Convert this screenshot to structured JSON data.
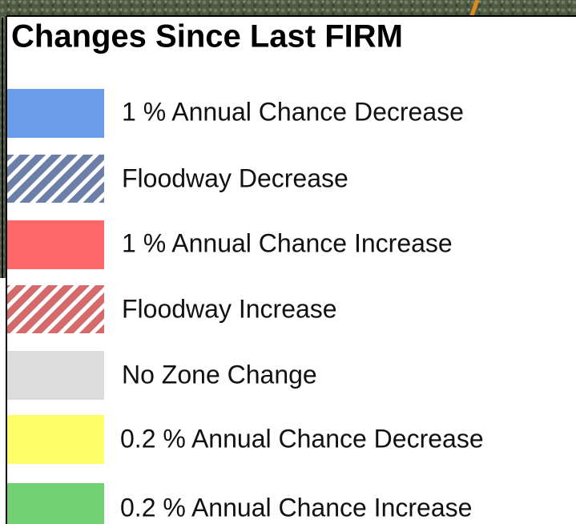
{
  "legend": {
    "title": "Changes Since Last FIRM",
    "items": [
      {
        "label": "1 % Annual Chance Decrease"
      },
      {
        "label": "Floodway Decrease"
      },
      {
        "label": "1 % Annual Chance Increase"
      },
      {
        "label": "Floodway Increase"
      },
      {
        "label": "No Zone Change"
      },
      {
        "label": "0.2 % Annual Chance Decrease"
      },
      {
        "label": "0.2 % Annual Chance Increase"
      }
    ]
  }
}
